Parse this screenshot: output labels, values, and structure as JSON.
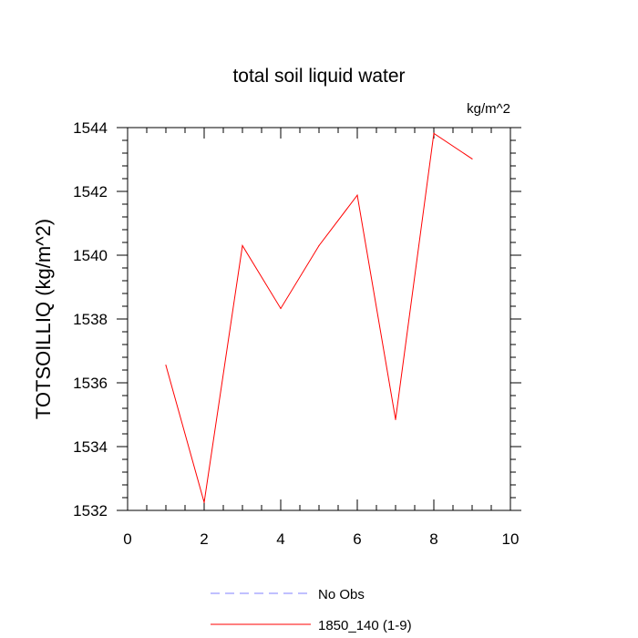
{
  "chart_data": {
    "type": "line",
    "title": "total soil liquid water",
    "units_label": "kg/m^2",
    "ylabel": "TOTSOILLIQ  (kg/m^2)",
    "xlabel": "",
    "xlim": [
      0,
      10
    ],
    "ylim": [
      1532,
      1544
    ],
    "xticks": [
      "0",
      "2",
      "4",
      "6",
      "8",
      "10"
    ],
    "yticks": [
      "1532",
      "1534",
      "1536",
      "1538",
      "1540",
      "1542",
      "1544"
    ],
    "grid": false,
    "legend_position": "bottom-center",
    "legend": [
      {
        "name": "No Obs",
        "color": "#8080ff",
        "style": "dashed"
      },
      {
        "name": "1850_140 (1-9)",
        "color": "#ff0000",
        "style": "solid"
      }
    ],
    "series": [
      {
        "name": "1850_140 (1-9)",
        "color": "#ff0000",
        "x": [
          1,
          2,
          3,
          4,
          5,
          6,
          7,
          8,
          9
        ],
        "y": [
          1536.55,
          1532.25,
          1540.3,
          1538.33,
          1540.3,
          1541.88,
          1534.85,
          1543.82,
          1543.02
        ]
      }
    ]
  }
}
